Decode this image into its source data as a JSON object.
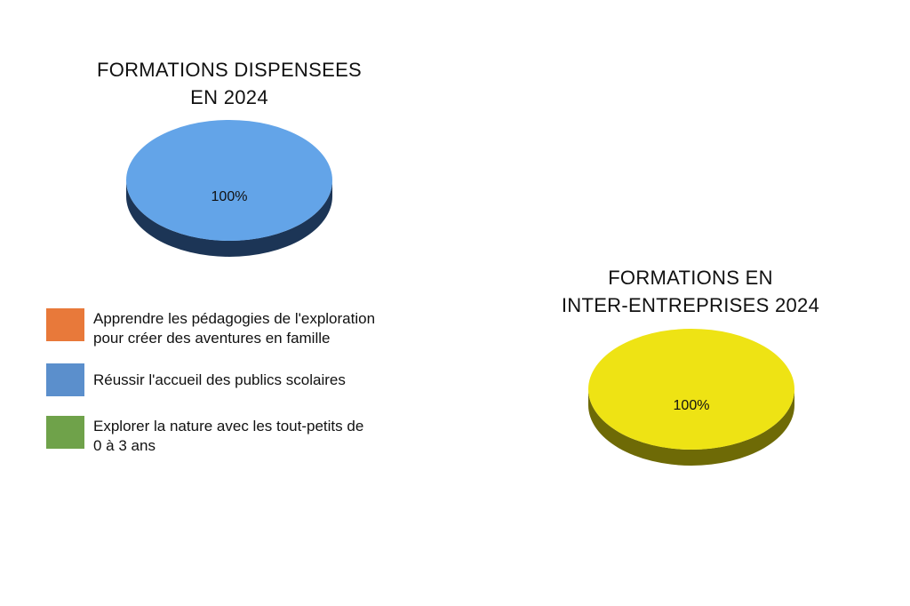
{
  "chart_data": [
    {
      "type": "pie",
      "title": "FORMATIONS DISPENSEES EN 2024",
      "title_lines": [
        "FORMATIONS DISPENSEES",
        "EN 2024"
      ],
      "slices": [
        {
          "label": "Apprendre les pédagogies de l'exploration pour créer des aventures en famille",
          "value": 0,
          "color": "#E8793A"
        },
        {
          "label": "Réussir l'accueil des publics scolaires",
          "value": 100,
          "color": "#63A4E8",
          "side_color": "#1C3556"
        },
        {
          "label": "Explorer la nature avec les tout-petits de 0 à 3 ans",
          "value": 0,
          "color": "#6FA24A"
        }
      ],
      "data_labels": [
        "100%"
      ],
      "legend": "left-bottom"
    },
    {
      "type": "pie",
      "title": "FORMATIONS EN INTER-ENTREPRISES 2024",
      "title_lines": [
        "FORMATIONS EN",
        "INTER-ENTREPRISES 2024"
      ],
      "slices": [
        {
          "label": "",
          "value": 100,
          "color": "#EEE314",
          "side_color": "#6E6A06"
        }
      ],
      "data_labels": [
        "100%"
      ]
    }
  ],
  "legend": {
    "items": [
      {
        "text": "Apprendre les pédagogies de l'exploration\npour créer des aventures en famille",
        "color": "#E8793A"
      },
      {
        "text": "Réussir l'accueil des publics scolaires",
        "color": "#5B8FCC"
      },
      {
        "text": "Explorer la nature avec les tout-petits de\n0 à 3 ans",
        "color": "#6FA24A"
      }
    ]
  }
}
